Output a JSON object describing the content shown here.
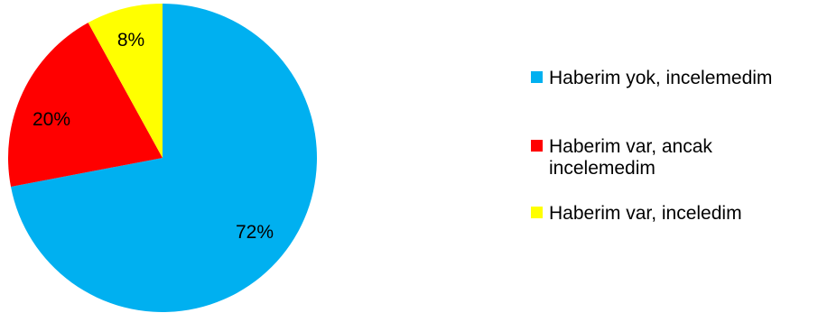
{
  "chart_data": {
    "type": "pie",
    "categories": [
      "Haberim yok, incelemedim",
      "Haberim var, ancak incelemedim",
      "Haberim var, inceledim"
    ],
    "values": [
      72,
      20,
      8
    ],
    "labels": [
      "72%",
      "20%",
      "8%"
    ],
    "colors": [
      "#00B0F0",
      "#FF0000",
      "#FFFF00"
    ],
    "legend": {
      "position": "right",
      "entries": [
        {
          "lines": [
            "Haberim yok, incelemedim"
          ]
        },
        {
          "lines": [
            "Haberim var, ancak",
            "incelemedim"
          ]
        },
        {
          "lines": [
            "Haberim var, inceledim"
          ]
        }
      ]
    },
    "title": ""
  }
}
